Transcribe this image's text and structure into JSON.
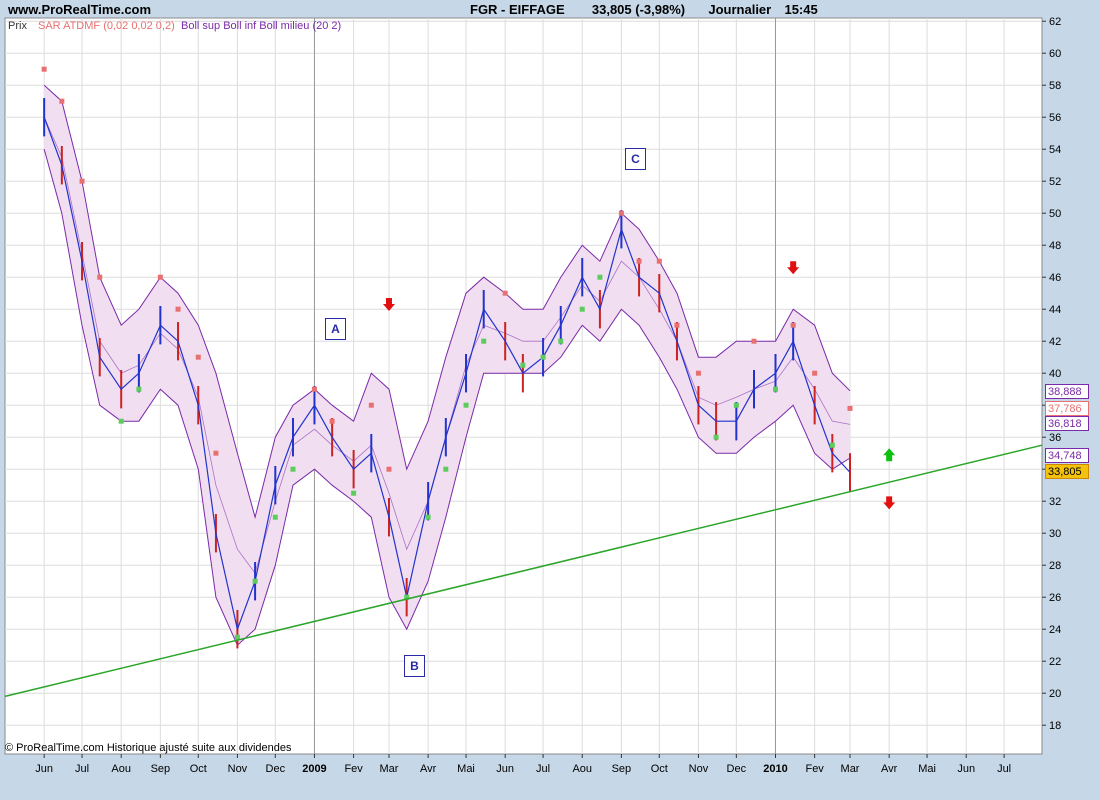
{
  "header": {
    "site": "www.ProRealTime.com",
    "title": "FGR - EIFFAGE",
    "quote": "33,805 (-3,98%)",
    "period": "Journalier",
    "time": "15:45"
  },
  "legend": {
    "price": "Prix",
    "sar": "SAR ATDMF (0,02 0,02 0,2)",
    "boll": "Boll sup Boll inf Boll milieu (20 2)"
  },
  "footer": "© ProRealTime.com Historique ajusté suite aux dividendes",
  "waves": [
    {
      "id": "A",
      "label": "A"
    },
    {
      "id": "B",
      "label": "B"
    },
    {
      "id": "C",
      "label": "C"
    }
  ],
  "colors": {
    "background": "#c6d8e8",
    "plot": "#ffffff",
    "grid": "#dcdcdc",
    "candle_up": "#2233cc",
    "candle_down": "#cc2222",
    "sar_bear": "#e87070",
    "sar_bull": "#5ccc5c",
    "band_line": "#7a2aa8",
    "band_fill": "#f1dff1",
    "trendline": "#2aa52a",
    "arrow_down": "#e01010",
    "arrow_up": "#10c010"
  },
  "price_tags": [
    {
      "value": "38,888",
      "color": "#7a2aa8"
    },
    {
      "value": "37,786",
      "color": "#e87070"
    },
    {
      "value": "36,818",
      "color": "#7a2aa8"
    },
    {
      "value": "34,748",
      "color": "#7a2aa8"
    },
    {
      "value": "33,805",
      "color": "#cc8800",
      "highlight": true
    }
  ],
  "chart_data": {
    "type": "line",
    "series": [
      {
        "name": "Prix",
        "x": [
          "2008-06-01",
          "2008-06-15",
          "2008-07-01",
          "2008-07-15",
          "2008-08-01",
          "2008-08-15",
          "2008-09-01",
          "2008-09-15",
          "2008-10-01",
          "2008-10-15",
          "2008-11-01",
          "2008-11-15",
          "2008-12-01",
          "2008-12-15",
          "2009-01-01",
          "2009-01-15",
          "2009-02-01",
          "2009-02-15",
          "2009-03-01",
          "2009-03-15",
          "2009-04-01",
          "2009-04-15",
          "2009-05-01",
          "2009-05-15",
          "2009-06-01",
          "2009-06-15",
          "2009-07-01",
          "2009-07-15",
          "2009-08-01",
          "2009-08-15",
          "2009-09-01",
          "2009-09-15",
          "2009-10-01",
          "2009-10-15",
          "2009-11-01",
          "2009-11-15",
          "2009-12-01",
          "2009-12-15",
          "2010-01-01",
          "2010-01-15",
          "2010-02-01",
          "2010-02-15",
          "2010-03-01"
        ],
        "values": [
          56,
          53,
          47,
          41,
          39,
          40,
          43,
          42,
          38,
          30,
          24,
          27,
          33,
          36,
          38,
          36,
          34,
          35,
          31,
          26,
          32,
          36,
          40,
          44,
          42,
          40,
          41,
          43,
          46,
          44,
          49,
          46,
          45,
          42,
          38,
          37,
          37,
          39,
          40,
          42,
          38,
          35,
          33.8
        ]
      },
      {
        "name": "Boll sup",
        "x": [
          "2008-06-01",
          "2008-06-15",
          "2008-07-01",
          "2008-07-15",
          "2008-08-01",
          "2008-08-15",
          "2008-09-01",
          "2008-09-15",
          "2008-10-01",
          "2008-10-15",
          "2008-11-01",
          "2008-11-15",
          "2008-12-01",
          "2008-12-15",
          "2009-01-01",
          "2009-01-15",
          "2009-02-01",
          "2009-02-15",
          "2009-03-01",
          "2009-03-15",
          "2009-04-01",
          "2009-04-15",
          "2009-05-01",
          "2009-05-15",
          "2009-06-01",
          "2009-06-15",
          "2009-07-01",
          "2009-07-15",
          "2009-08-01",
          "2009-08-15",
          "2009-09-01",
          "2009-09-15",
          "2009-10-01",
          "2009-10-15",
          "2009-11-01",
          "2009-11-15",
          "2009-12-01",
          "2009-12-15",
          "2010-01-01",
          "2010-01-15",
          "2010-02-01",
          "2010-02-15",
          "2010-03-01"
        ],
        "values": [
          58,
          57,
          52,
          46,
          43,
          44,
          46,
          45,
          43,
          40,
          35,
          31,
          36,
          38,
          39,
          38,
          37,
          40,
          39,
          34,
          37,
          41,
          45,
          46,
          45,
          44,
          44,
          46,
          48,
          47,
          50,
          49,
          47,
          45,
          41,
          41,
          42,
          42,
          42,
          44,
          43,
          40,
          38.9
        ]
      },
      {
        "name": "Boll inf",
        "x": [
          "2008-06-01",
          "2008-06-15",
          "2008-07-01",
          "2008-07-15",
          "2008-08-01",
          "2008-08-15",
          "2008-09-01",
          "2008-09-15",
          "2008-10-01",
          "2008-10-15",
          "2008-11-01",
          "2008-11-15",
          "2008-12-01",
          "2008-12-15",
          "2009-01-01",
          "2009-01-15",
          "2009-02-01",
          "2009-02-15",
          "2009-03-01",
          "2009-03-15",
          "2009-04-01",
          "2009-04-15",
          "2009-05-01",
          "2009-05-15",
          "2009-06-01",
          "2009-06-15",
          "2009-07-01",
          "2009-07-15",
          "2009-08-01",
          "2009-08-15",
          "2009-09-01",
          "2009-09-15",
          "2009-10-01",
          "2009-10-15",
          "2009-11-01",
          "2009-11-15",
          "2009-12-01",
          "2009-12-15",
          "2010-01-01",
          "2010-01-15",
          "2010-02-01",
          "2010-02-15",
          "2010-03-01"
        ],
        "values": [
          54,
          50,
          43,
          38,
          37,
          37,
          39,
          38,
          34,
          26,
          23,
          24,
          28,
          33,
          34,
          33,
          32,
          31,
          26,
          24,
          27,
          31,
          36,
          40,
          40,
          40,
          40,
          41,
          43,
          42,
          44,
          43,
          41,
          39,
          36,
          35,
          35,
          36,
          37,
          38,
          35,
          34,
          34.7
        ]
      }
    ],
    "sar": {
      "name": "SAR ATDMF (0,02 0,02 0,2)",
      "points": [
        {
          "x": "2008-06-01",
          "y": 59,
          "trend": "bear"
        },
        {
          "x": "2008-06-15",
          "y": 57,
          "trend": "bear"
        },
        {
          "x": "2008-07-01",
          "y": 52,
          "trend": "bear"
        },
        {
          "x": "2008-07-15",
          "y": 46,
          "trend": "bear"
        },
        {
          "x": "2008-08-01",
          "y": 37,
          "trend": "bull"
        },
        {
          "x": "2008-08-15",
          "y": 39,
          "trend": "bull"
        },
        {
          "x": "2008-09-01",
          "y": 46,
          "trend": "bear"
        },
        {
          "x": "2008-09-15",
          "y": 44,
          "trend": "bear"
        },
        {
          "x": "2008-10-01",
          "y": 41,
          "trend": "bear"
        },
        {
          "x": "2008-10-15",
          "y": 35,
          "trend": "bear"
        },
        {
          "x": "2008-11-01",
          "y": 23.5,
          "trend": "bull"
        },
        {
          "x": "2008-11-15",
          "y": 27,
          "trend": "bull"
        },
        {
          "x": "2008-12-01",
          "y": 31,
          "trend": "bull"
        },
        {
          "x": "2008-12-15",
          "y": 34,
          "trend": "bull"
        },
        {
          "x": "2009-01-01",
          "y": 39,
          "trend": "bear"
        },
        {
          "x": "2009-01-15",
          "y": 37,
          "trend": "bear"
        },
        {
          "x": "2009-02-01",
          "y": 32.5,
          "trend": "bull"
        },
        {
          "x": "2009-02-15",
          "y": 38,
          "trend": "bear"
        },
        {
          "x": "2009-03-01",
          "y": 34,
          "trend": "bear"
        },
        {
          "x": "2009-03-15",
          "y": 26,
          "trend": "bull"
        },
        {
          "x": "2009-04-01",
          "y": 31,
          "trend": "bull"
        },
        {
          "x": "2009-04-15",
          "y": 34,
          "trend": "bull"
        },
        {
          "x": "2009-05-01",
          "y": 38,
          "trend": "bull"
        },
        {
          "x": "2009-05-15",
          "y": 42,
          "trend": "bull"
        },
        {
          "x": "2009-06-01",
          "y": 45,
          "trend": "bear"
        },
        {
          "x": "2009-06-15",
          "y": 40.5,
          "trend": "bull"
        },
        {
          "x": "2009-07-01",
          "y": 41,
          "trend": "bull"
        },
        {
          "x": "2009-07-15",
          "y": 42,
          "trend": "bull"
        },
        {
          "x": "2009-08-01",
          "y": 44,
          "trend": "bull"
        },
        {
          "x": "2009-08-15",
          "y": 46,
          "trend": "bull"
        },
        {
          "x": "2009-09-01",
          "y": 50,
          "trend": "bear"
        },
        {
          "x": "2009-09-15",
          "y": 47,
          "trend": "bear"
        },
        {
          "x": "2009-10-01",
          "y": 47,
          "trend": "bear"
        },
        {
          "x": "2009-10-15",
          "y": 43,
          "trend": "bear"
        },
        {
          "x": "2009-11-01",
          "y": 40,
          "trend": "bear"
        },
        {
          "x": "2009-11-15",
          "y": 36,
          "trend": "bull"
        },
        {
          "x": "2009-12-01",
          "y": 38,
          "trend": "bull"
        },
        {
          "x": "2009-12-15",
          "y": 42,
          "trend": "bear"
        },
        {
          "x": "2010-01-01",
          "y": 39,
          "trend": "bull"
        },
        {
          "x": "2010-01-15",
          "y": 43,
          "trend": "bear"
        },
        {
          "x": "2010-02-01",
          "y": 40,
          "trend": "bear"
        },
        {
          "x": "2010-02-15",
          "y": 35.5,
          "trend": "bull"
        },
        {
          "x": "2010-03-01",
          "y": 37.8,
          "trend": "bear"
        }
      ]
    },
    "trendline": {
      "from": {
        "x": "2008-05-01",
        "y": 19.8
      },
      "to": {
        "x": "2010-07-31",
        "y": 35.5
      }
    },
    "wave_points": [
      {
        "label": "A",
        "x": "2009-01-01",
        "y": 43
      },
      {
        "label": "B",
        "x": "2009-03-15",
        "y": 21.5
      },
      {
        "label": "C",
        "x": "2009-08-15",
        "y": 54.6
      }
    ],
    "signals": [
      {
        "x": "2009-03-01",
        "y": 44.2,
        "dir": "down"
      },
      {
        "x": "2010-01-15",
        "y": 46.5,
        "dir": "down"
      },
      {
        "x": "2010-04-01",
        "y": 35,
        "dir": "up"
      },
      {
        "x": "2010-04-01",
        "y": 31.8,
        "dir": "down"
      }
    ],
    "xlim": [
      "2008-05-01",
      "2010-07-31"
    ],
    "ylim": [
      16.2,
      62.2
    ],
    "xticks": [
      {
        "x": "2008-06-01",
        "label": "Jun"
      },
      {
        "x": "2008-07-01",
        "label": "Jul"
      },
      {
        "x": "2008-08-01",
        "label": "Aou"
      },
      {
        "x": "2008-09-01",
        "label": "Sep"
      },
      {
        "x": "2008-10-01",
        "label": "Oct"
      },
      {
        "x": "2008-11-01",
        "label": "Nov"
      },
      {
        "x": "2008-12-01",
        "label": "Dec"
      },
      {
        "x": "2009-01-01",
        "label": "2009",
        "bold": true
      },
      {
        "x": "2009-02-01",
        "label": "Fev"
      },
      {
        "x": "2009-03-01",
        "label": "Mar"
      },
      {
        "x": "2009-04-01",
        "label": "Avr"
      },
      {
        "x": "2009-05-01",
        "label": "Mai"
      },
      {
        "x": "2009-06-01",
        "label": "Jun"
      },
      {
        "x": "2009-07-01",
        "label": "Jul"
      },
      {
        "x": "2009-08-01",
        "label": "Aou"
      },
      {
        "x": "2009-09-01",
        "label": "Sep"
      },
      {
        "x": "2009-10-01",
        "label": "Oct"
      },
      {
        "x": "2009-11-01",
        "label": "Nov"
      },
      {
        "x": "2009-12-01",
        "label": "Dec"
      },
      {
        "x": "2010-01-01",
        "label": "2010",
        "bold": true
      },
      {
        "x": "2010-02-01",
        "label": "Fev"
      },
      {
        "x": "2010-03-01",
        "label": "Mar"
      },
      {
        "x": "2010-04-01",
        "label": "Avr"
      },
      {
        "x": "2010-05-01",
        "label": "Mai"
      },
      {
        "x": "2010-06-01",
        "label": "Jun"
      },
      {
        "x": "2010-07-01",
        "label": "Jul"
      }
    ],
    "yticks": [
      18,
      20,
      22,
      24,
      26,
      28,
      30,
      32,
      34,
      36,
      38,
      40,
      42,
      44,
      46,
      48,
      50,
      52,
      54,
      56,
      58,
      60,
      62
    ],
    "grid": true
  }
}
